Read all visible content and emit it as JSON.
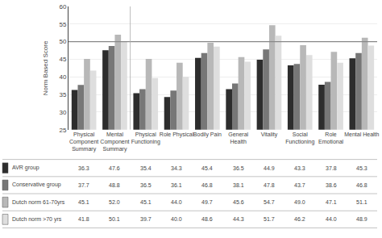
{
  "chart_data": {
    "type": "bar",
    "categories": [
      "Physical\nComponent\nSummary",
      "Mental\nComponent\nSummary",
      "Physical\nFunctioning",
      "Role Physical",
      "Bodily Pain",
      "General\nHealth",
      "Vitality",
      "Social\nFunctioning",
      "Role\nEmotional",
      "Mental Health"
    ],
    "series": [
      {
        "name": "AVR group",
        "color": "#2d2d2d",
        "values": [
          36.3,
          47.6,
          35.4,
          34.3,
          45.4,
          36.5,
          44.9,
          43.3,
          37.8,
          45.3
        ],
        "value_labels": [
          "36.3",
          "47.6",
          "35.4",
          "34.3",
          "45.4",
          "36.5",
          "44.9",
          "43.3",
          "37.8",
          "45.3"
        ]
      },
      {
        "name": "Conservative group",
        "color": "#777777",
        "values": [
          37.7,
          48.8,
          36.5,
          36.1,
          46.8,
          38.1,
          47.8,
          43.7,
          38.6,
          46.8
        ],
        "value_labels": [
          "37.7",
          "48.8",
          "36.5",
          "36.1",
          "46.8",
          "38.1",
          "47.8",
          "43.7",
          "38.6",
          "46.8"
        ]
      },
      {
        "name": "Dutch norm 61-70yrs",
        "color": "#b8b8b8",
        "values": [
          45.1,
          52.0,
          45.1,
          44.0,
          49.7,
          45.6,
          54.7,
          49.0,
          47.1,
          51.1
        ],
        "value_labels": [
          "45.1",
          "52.0",
          "45.1",
          "44.0",
          "49.7",
          "45.6",
          "54.7",
          "49.0",
          "47.1",
          "51.1"
        ]
      },
      {
        "name": "Dutch norm >70 yrs",
        "color": "#dedede",
        "values": [
          41.8,
          50.1,
          39.7,
          40.0,
          48.6,
          44.3,
          51.7,
          46.2,
          44.0,
          48.9
        ],
        "value_labels": [
          "41.8",
          "50.1",
          "39.7",
          "40.0",
          "48.6",
          "44.3",
          "51.7",
          "46.2",
          "44.0",
          "48.9"
        ]
      }
    ],
    "ylabel": "Norm Based Score",
    "ylim": [
      25,
      60
    ],
    "yticks": [
      25,
      30,
      35,
      40,
      45,
      50,
      55,
      60
    ],
    "grid": true,
    "hline": 50,
    "separator_after": "Mental\nComponent\nSummary"
  }
}
